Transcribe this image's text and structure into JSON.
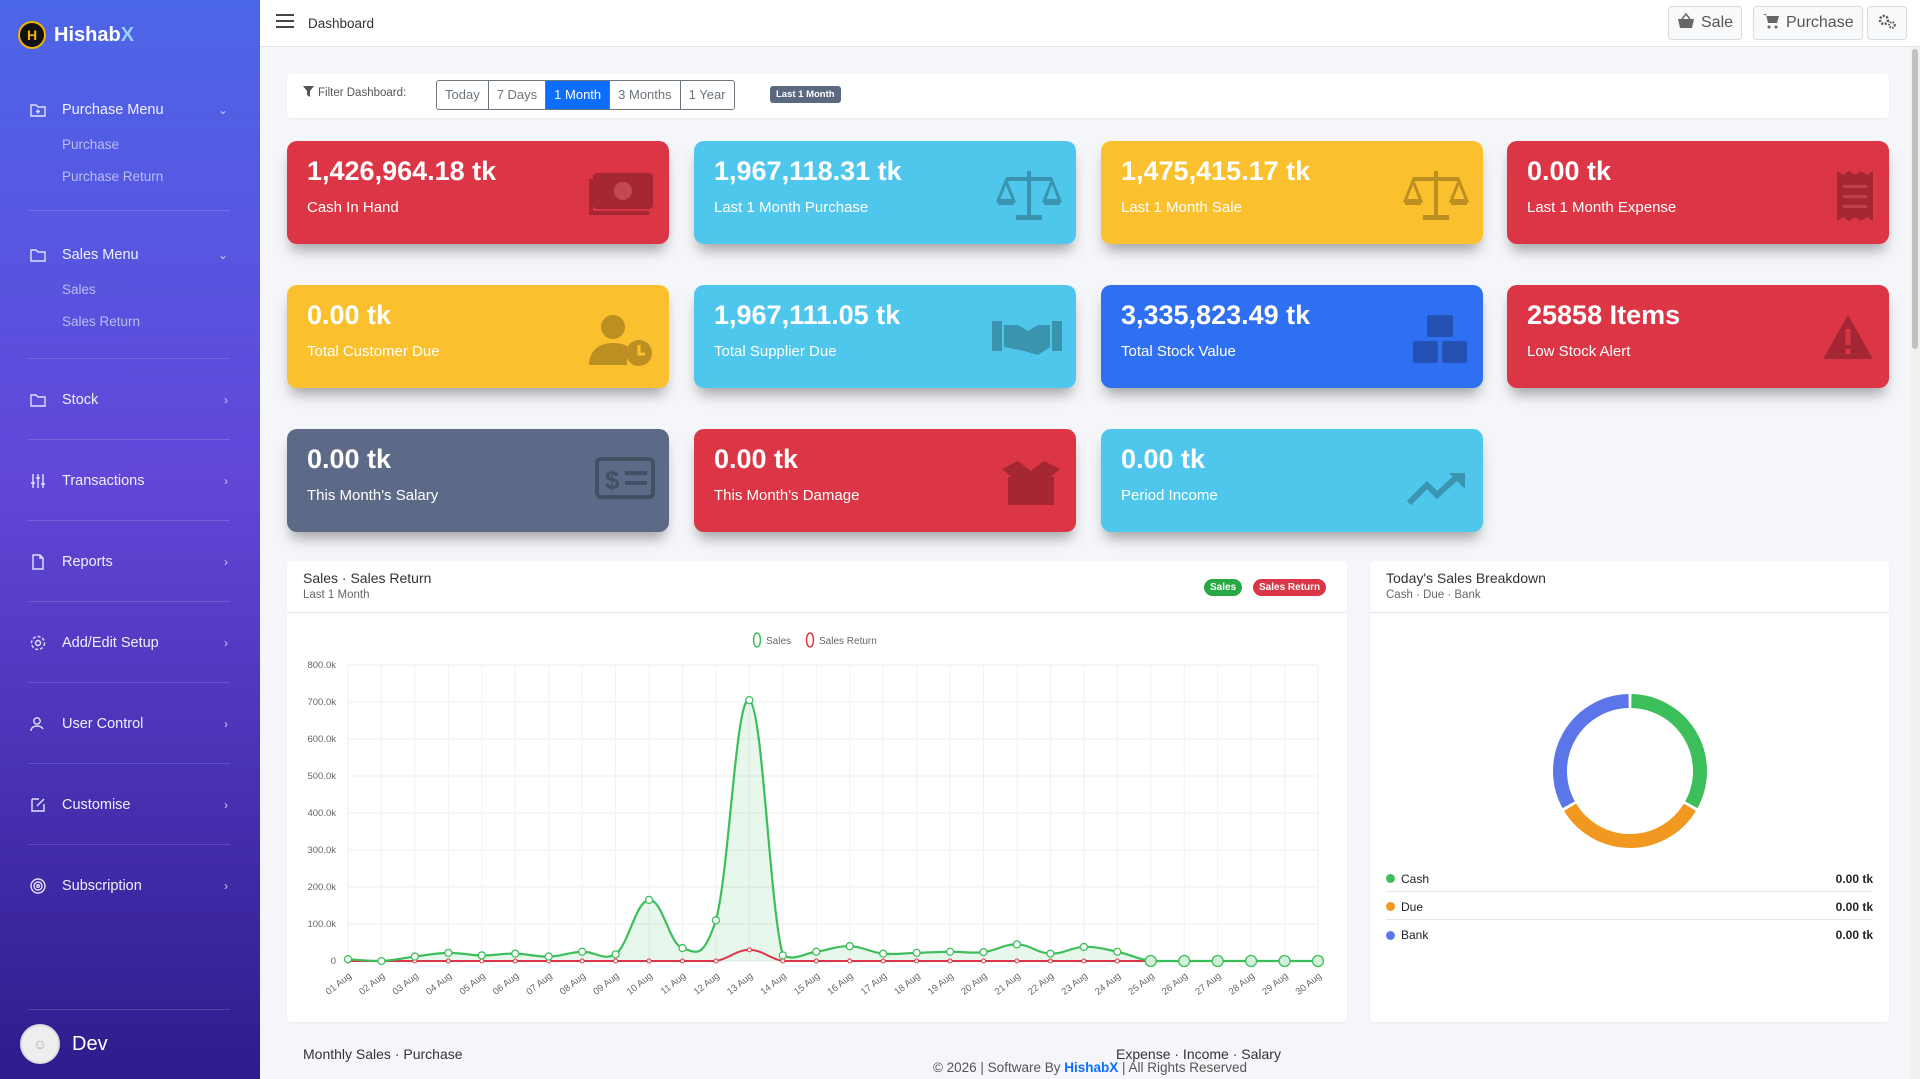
{
  "brand": {
    "logo_letter": "H",
    "name_main": "Hishab",
    "name_accent": "X"
  },
  "sidebar": {
    "sections": [
      {
        "label": "Purchase Menu",
        "icon": "folder-plus-icon",
        "expanded": true,
        "sub": [
          "Purchase",
          "Purchase Return"
        ]
      },
      {
        "label": "Sales Menu",
        "icon": "folder-icon",
        "expanded": true,
        "sub": [
          "Sales",
          "Sales Return"
        ]
      },
      {
        "label": "Stock",
        "icon": "folder-icon"
      },
      {
        "label": "Transactions",
        "icon": "sliders-icon"
      },
      {
        "label": "Reports",
        "icon": "file-icon"
      },
      {
        "label": "Add/Edit Setup",
        "icon": "gear-icon"
      },
      {
        "label": "User Control",
        "icon": "user-icon"
      },
      {
        "label": "Customise",
        "icon": "edit-icon"
      },
      {
        "label": "Subscription",
        "icon": "target-icon"
      }
    ],
    "user": {
      "name": "Dev"
    }
  },
  "topbar": {
    "breadcrumb": "Dashboard",
    "sale_label": "Sale",
    "purchase_label": "Purchase"
  },
  "filter": {
    "label": "Filter Dashboard:",
    "options": [
      "Today",
      "7 Days",
      "1 Month",
      "3 Months",
      "1 Year"
    ],
    "active": "1 Month",
    "badge": "Last 1 Month"
  },
  "cards": [
    {
      "value": "1,426,964.18 tk",
      "label": "Cash In Hand",
      "color": "#dc3545",
      "icon": "money-icon"
    },
    {
      "value": "1,967,118.31 tk",
      "label": "Last 1 Month Purchase",
      "color": "#4fc7ed",
      "icon": "balance-scale-icon"
    },
    {
      "value": "1,475,415.17 tk",
      "label": "Last 1 Month Sale",
      "color": "#fbc02d",
      "icon": "balance-scale-icon"
    },
    {
      "value": "0.00 tk",
      "label": "Last 1 Month Expense",
      "color": "#dc3545",
      "icon": "receipt-icon"
    },
    {
      "value": "0.00 tk",
      "label": "Total Customer Due",
      "color": "#fbc02d",
      "icon": "user-clock-icon"
    },
    {
      "value": "1,967,111.05 tk",
      "label": "Total Supplier Due",
      "color": "#4fc7ed",
      "icon": "handshake-icon"
    },
    {
      "value": "3,335,823.49 tk",
      "label": "Total Stock Value",
      "color": "#2f6ff2",
      "icon": "boxes-icon"
    },
    {
      "value": "25858 Items",
      "label": "Low Stock Alert",
      "color": "#dc3545",
      "icon": "warning-icon"
    },
    {
      "value": "0.00 tk",
      "label": "This Month's Salary",
      "color": "#5c6a87",
      "icon": "money-check-icon"
    },
    {
      "value": "0.00 tk",
      "label": "This Month's Damage",
      "color": "#dc3545",
      "icon": "box-open-icon"
    },
    {
      "value": "0.00 tk",
      "label": "Period Income",
      "color": "#4fc7ed",
      "icon": "trend-up-icon"
    }
  ],
  "sales_panel": {
    "title": "Sales · Sales Return",
    "subtitle": "Last 1 Month",
    "badge_sales": "Sales",
    "badge_return": "Sales Return"
  },
  "breakdown_panel": {
    "title": "Today's Sales Breakdown",
    "subtitle": "Cash · Due · Bank",
    "rows": [
      {
        "label": "Cash",
        "amount": "0.00 tk",
        "color": "#3cbf5a"
      },
      {
        "label": "Due",
        "amount": "0.00 tk",
        "color": "#f0981f"
      },
      {
        "label": "Bank",
        "amount": "0.00 tk",
        "color": "#5b76e8"
      }
    ]
  },
  "bottom": {
    "left_title": "Monthly Sales · Purchase",
    "right_title": "Expense · Income · Salary"
  },
  "footer": {
    "prefix": "© 2026 | Software By ",
    "brand": "HishabX",
    "suffix": " | All Rights Reserved"
  },
  "chart_data": [
    {
      "type": "line",
      "x": [
        "01 Aug",
        "02 Aug",
        "03 Aug",
        "04 Aug",
        "05 Aug",
        "06 Aug",
        "07 Aug",
        "08 Aug",
        "09 Aug",
        "10 Aug",
        "11 Aug",
        "12 Aug",
        "13 Aug",
        "14 Aug",
        "15 Aug",
        "16 Aug",
        "17 Aug",
        "18 Aug",
        "19 Aug",
        "20 Aug",
        "21 Aug",
        "22 Aug",
        "23 Aug",
        "24 Aug",
        "25 Aug",
        "26 Aug",
        "27 Aug",
        "28 Aug",
        "29 Aug",
        "30 Aug"
      ],
      "series": [
        {
          "name": "Sales",
          "color": "#3cbf5a",
          "values": [
            5000,
            0,
            12000,
            22000,
            15000,
            20000,
            12000,
            25000,
            18000,
            165000,
            35000,
            110000,
            705000,
            15000,
            25000,
            40000,
            20000,
            22000,
            25000,
            24000,
            45000,
            20000,
            38000,
            25000,
            0,
            0,
            0,
            0,
            0,
            0
          ]
        },
        {
          "name": "Sales Return",
          "color": "#dc3545",
          "values": [
            0,
            0,
            0,
            0,
            0,
            0,
            0,
            0,
            0,
            0,
            0,
            0,
            30000,
            0,
            0,
            0,
            0,
            0,
            0,
            0,
            0,
            0,
            0,
            0,
            0,
            0,
            0,
            0,
            0,
            0
          ]
        }
      ],
      "yticks": [
        "0",
        "100.0k",
        "200.0k",
        "300.0k",
        "400.0k",
        "500.0k",
        "600.0k",
        "700.0k",
        "800.0k"
      ],
      "ylim": [
        0,
        800000
      ],
      "grid": true,
      "legend": "top"
    },
    {
      "type": "pie",
      "subtype": "doughnut",
      "categories": [
        "Cash",
        "Due",
        "Bank"
      ],
      "values": [
        1,
        1,
        1
      ],
      "colors": [
        "#3cbf5a",
        "#f0981f",
        "#5b76e8"
      ]
    }
  ]
}
